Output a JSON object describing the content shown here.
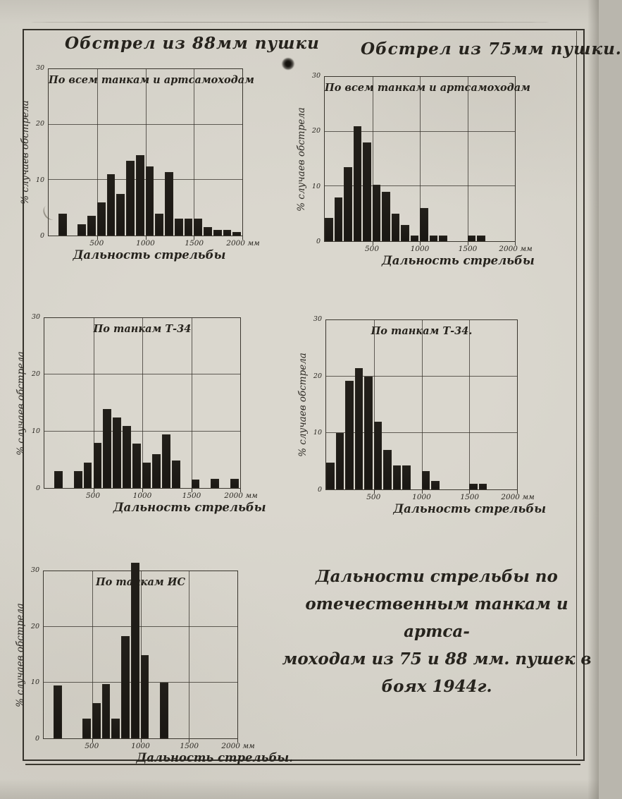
{
  "colors": {
    "paper": "#d6d3ca",
    "ink": "#2b2822",
    "bar": "#1c1915"
  },
  "figure_caption": {
    "lines": [
      "Дальности стрельбы по",
      "отечественным танкам и артса-",
      "моходам из 75 и 88 мм. пушек в",
      "боях  1944г."
    ]
  },
  "chart_data": [
    {
      "id": "gun-88mm-all-tanks",
      "type": "bar",
      "title": "Обстрел из 88мм пушки",
      "subtitle": "По всем танкам и артсамоходам",
      "ylabel": "% случаев обстрела",
      "xlabel": "Дальность стрельбы",
      "xlim": [
        0,
        2000
      ],
      "ylim": [
        0,
        30
      ],
      "bin_width_m": 100,
      "grid_x": [
        500,
        1000,
        1500
      ],
      "grid_y": [
        10,
        20
      ],
      "x_ticks": [
        {
          "v": 500,
          "label": "500"
        },
        {
          "v": 1000,
          "label": "1000"
        },
        {
          "v": 1500,
          "label": "1500"
        },
        {
          "v": 2000,
          "label": "2000 мм"
        }
      ],
      "y_ticks": [
        {
          "v": 0,
          "label": "0"
        },
        {
          "v": 10,
          "label": "10"
        },
        {
          "v": 20,
          "label": "20"
        },
        {
          "v": 30,
          "label": "30"
        }
      ],
      "bars": [
        {
          "x": 100,
          "pct": 4
        },
        {
          "x": 300,
          "pct": 2
        },
        {
          "x": 400,
          "pct": 3.5
        },
        {
          "x": 500,
          "pct": 6
        },
        {
          "x": 600,
          "pct": 11
        },
        {
          "x": 700,
          "pct": 7.5
        },
        {
          "x": 800,
          "pct": 13.5
        },
        {
          "x": 900,
          "pct": 14.5
        },
        {
          "x": 1000,
          "pct": 12.5
        },
        {
          "x": 1100,
          "pct": 4
        },
        {
          "x": 1200,
          "pct": 11.5
        },
        {
          "x": 1300,
          "pct": 3
        },
        {
          "x": 1400,
          "pct": 3
        },
        {
          "x": 1500,
          "pct": 3
        },
        {
          "x": 1600,
          "pct": 1.5
        },
        {
          "x": 1700,
          "pct": 1
        },
        {
          "x": 1800,
          "pct": 1
        },
        {
          "x": 1900,
          "pct": 0.7
        }
      ]
    },
    {
      "id": "gun-75mm-all-tanks",
      "type": "bar",
      "title": "Обстрел из 75мм пушки.",
      "subtitle": "По всем танкам и артсамоходам",
      "ylabel": "% случаев обстрела",
      "xlabel": "Дальность стрельбы",
      "xlim": [
        0,
        2000
      ],
      "ylim": [
        0,
        30
      ],
      "bin_width_m": 100,
      "grid_x": [
        500,
        1000,
        1500
      ],
      "grid_y": [
        10,
        20
      ],
      "x_ticks": [
        {
          "v": 500,
          "label": "500"
        },
        {
          "v": 1000,
          "label": "1000"
        },
        {
          "v": 1500,
          "label": "1500"
        },
        {
          "v": 2000,
          "label": "2000 мм"
        }
      ],
      "y_ticks": [
        {
          "v": 0,
          "label": "0"
        },
        {
          "v": 10,
          "label": "10"
        },
        {
          "v": 20,
          "label": "20"
        },
        {
          "v": 30,
          "label": "30"
        }
      ],
      "bars": [
        {
          "x": 0,
          "pct": 4.3
        },
        {
          "x": 100,
          "pct": 8
        },
        {
          "x": 200,
          "pct": 13.5
        },
        {
          "x": 300,
          "pct": 21
        },
        {
          "x": 400,
          "pct": 18
        },
        {
          "x": 500,
          "pct": 10.3
        },
        {
          "x": 600,
          "pct": 9
        },
        {
          "x": 700,
          "pct": 5
        },
        {
          "x": 800,
          "pct": 3
        },
        {
          "x": 900,
          "pct": 1
        },
        {
          "x": 1000,
          "pct": 6
        },
        {
          "x": 1100,
          "pct": 1
        },
        {
          "x": 1200,
          "pct": 1
        },
        {
          "x": 1500,
          "pct": 1
        },
        {
          "x": 1600,
          "pct": 1
        }
      ]
    },
    {
      "id": "gun-88mm-t34",
      "type": "bar",
      "subtitle": "По танкам Т-34",
      "ylabel": "% случаев обстрела",
      "xlabel": "Дальность стрельбы",
      "xlim": [
        0,
        2000
      ],
      "ylim": [
        0,
        30
      ],
      "bin_width_m": 100,
      "grid_x": [
        500,
        1000,
        1500
      ],
      "grid_y": [
        10,
        20
      ],
      "x_ticks": [
        {
          "v": 500,
          "label": "500"
        },
        {
          "v": 1000,
          "label": "1000"
        },
        {
          "v": 1500,
          "label": "1500"
        },
        {
          "v": 2000,
          "label": "2000 мм"
        }
      ],
      "y_ticks": [
        {
          "v": 0,
          "label": "0"
        },
        {
          "v": 10,
          "label": "10"
        },
        {
          "v": 20,
          "label": "20"
        },
        {
          "v": 30,
          "label": "30"
        }
      ],
      "bars": [
        {
          "x": 100,
          "pct": 3
        },
        {
          "x": 300,
          "pct": 3
        },
        {
          "x": 400,
          "pct": 4.5
        },
        {
          "x": 500,
          "pct": 8
        },
        {
          "x": 600,
          "pct": 14
        },
        {
          "x": 700,
          "pct": 12.5
        },
        {
          "x": 800,
          "pct": 11
        },
        {
          "x": 900,
          "pct": 7.8
        },
        {
          "x": 1000,
          "pct": 4.5
        },
        {
          "x": 1100,
          "pct": 6
        },
        {
          "x": 1200,
          "pct": 9.5
        },
        {
          "x": 1300,
          "pct": 4.8
        },
        {
          "x": 1500,
          "pct": 1.5
        },
        {
          "x": 1700,
          "pct": 1.6
        },
        {
          "x": 1900,
          "pct": 1.6
        }
      ]
    },
    {
      "id": "gun-75mm-t34",
      "type": "bar",
      "subtitle": "По танкам Т-34.",
      "ylabel": "% случаев обстрела",
      "xlabel": "Дальность стрельбы",
      "xlim": [
        0,
        2000
      ],
      "ylim": [
        0,
        30
      ],
      "bin_width_m": 100,
      "grid_x": [
        500,
        1000,
        1500
      ],
      "grid_y": [
        10,
        20
      ],
      "x_ticks": [
        {
          "v": 500,
          "label": "500"
        },
        {
          "v": 1000,
          "label": "1000"
        },
        {
          "v": 1500,
          "label": "1500"
        },
        {
          "v": 2000,
          "label": "2000 мм"
        }
      ],
      "y_ticks": [
        {
          "v": 0,
          "label": "0"
        },
        {
          "v": 10,
          "label": "10"
        },
        {
          "v": 20,
          "label": "20"
        },
        {
          "v": 30,
          "label": "30"
        }
      ],
      "bars": [
        {
          "x": 0,
          "pct": 4.7
        },
        {
          "x": 100,
          "pct": 10
        },
        {
          "x": 200,
          "pct": 19.3
        },
        {
          "x": 300,
          "pct": 21.5
        },
        {
          "x": 400,
          "pct": 20
        },
        {
          "x": 500,
          "pct": 12
        },
        {
          "x": 600,
          "pct": 7
        },
        {
          "x": 700,
          "pct": 4.3
        },
        {
          "x": 800,
          "pct": 4.2
        },
        {
          "x": 1000,
          "pct": 3.2
        },
        {
          "x": 1100,
          "pct": 1.5
        },
        {
          "x": 1500,
          "pct": 1
        },
        {
          "x": 1600,
          "pct": 1
        }
      ]
    },
    {
      "id": "gun-88mm-is",
      "type": "bar",
      "subtitle": "По танкам ИС",
      "ylabel": "% случаев обстрела",
      "xlabel": "Дальность стрельбы.",
      "xlim": [
        0,
        2000
      ],
      "ylim": [
        0,
        30
      ],
      "bin_width_m": 100,
      "grid_x": [
        500,
        1000,
        1500
      ],
      "grid_y": [
        10,
        20
      ],
      "x_ticks": [
        {
          "v": 500,
          "label": "500"
        },
        {
          "v": 1000,
          "label": "1000"
        },
        {
          "v": 1500,
          "label": "1500"
        },
        {
          "v": 2000,
          "label": "2000 мм"
        }
      ],
      "y_ticks": [
        {
          "v": 0,
          "label": "0"
        },
        {
          "v": 10,
          "label": "10"
        },
        {
          "v": 20,
          "label": "20"
        },
        {
          "v": 30,
          "label": "30"
        }
      ],
      "bars": [
        {
          "x": 100,
          "pct": 9.5
        },
        {
          "x": 400,
          "pct": 3.5
        },
        {
          "x": 500,
          "pct": 6.3
        },
        {
          "x": 600,
          "pct": 9.7
        },
        {
          "x": 700,
          "pct": 3.6
        },
        {
          "x": 800,
          "pct": 18.3
        },
        {
          "x": 900,
          "pct": 31.5
        },
        {
          "x": 1000,
          "pct": 15
        },
        {
          "x": 1200,
          "pct": 10
        }
      ]
    }
  ]
}
